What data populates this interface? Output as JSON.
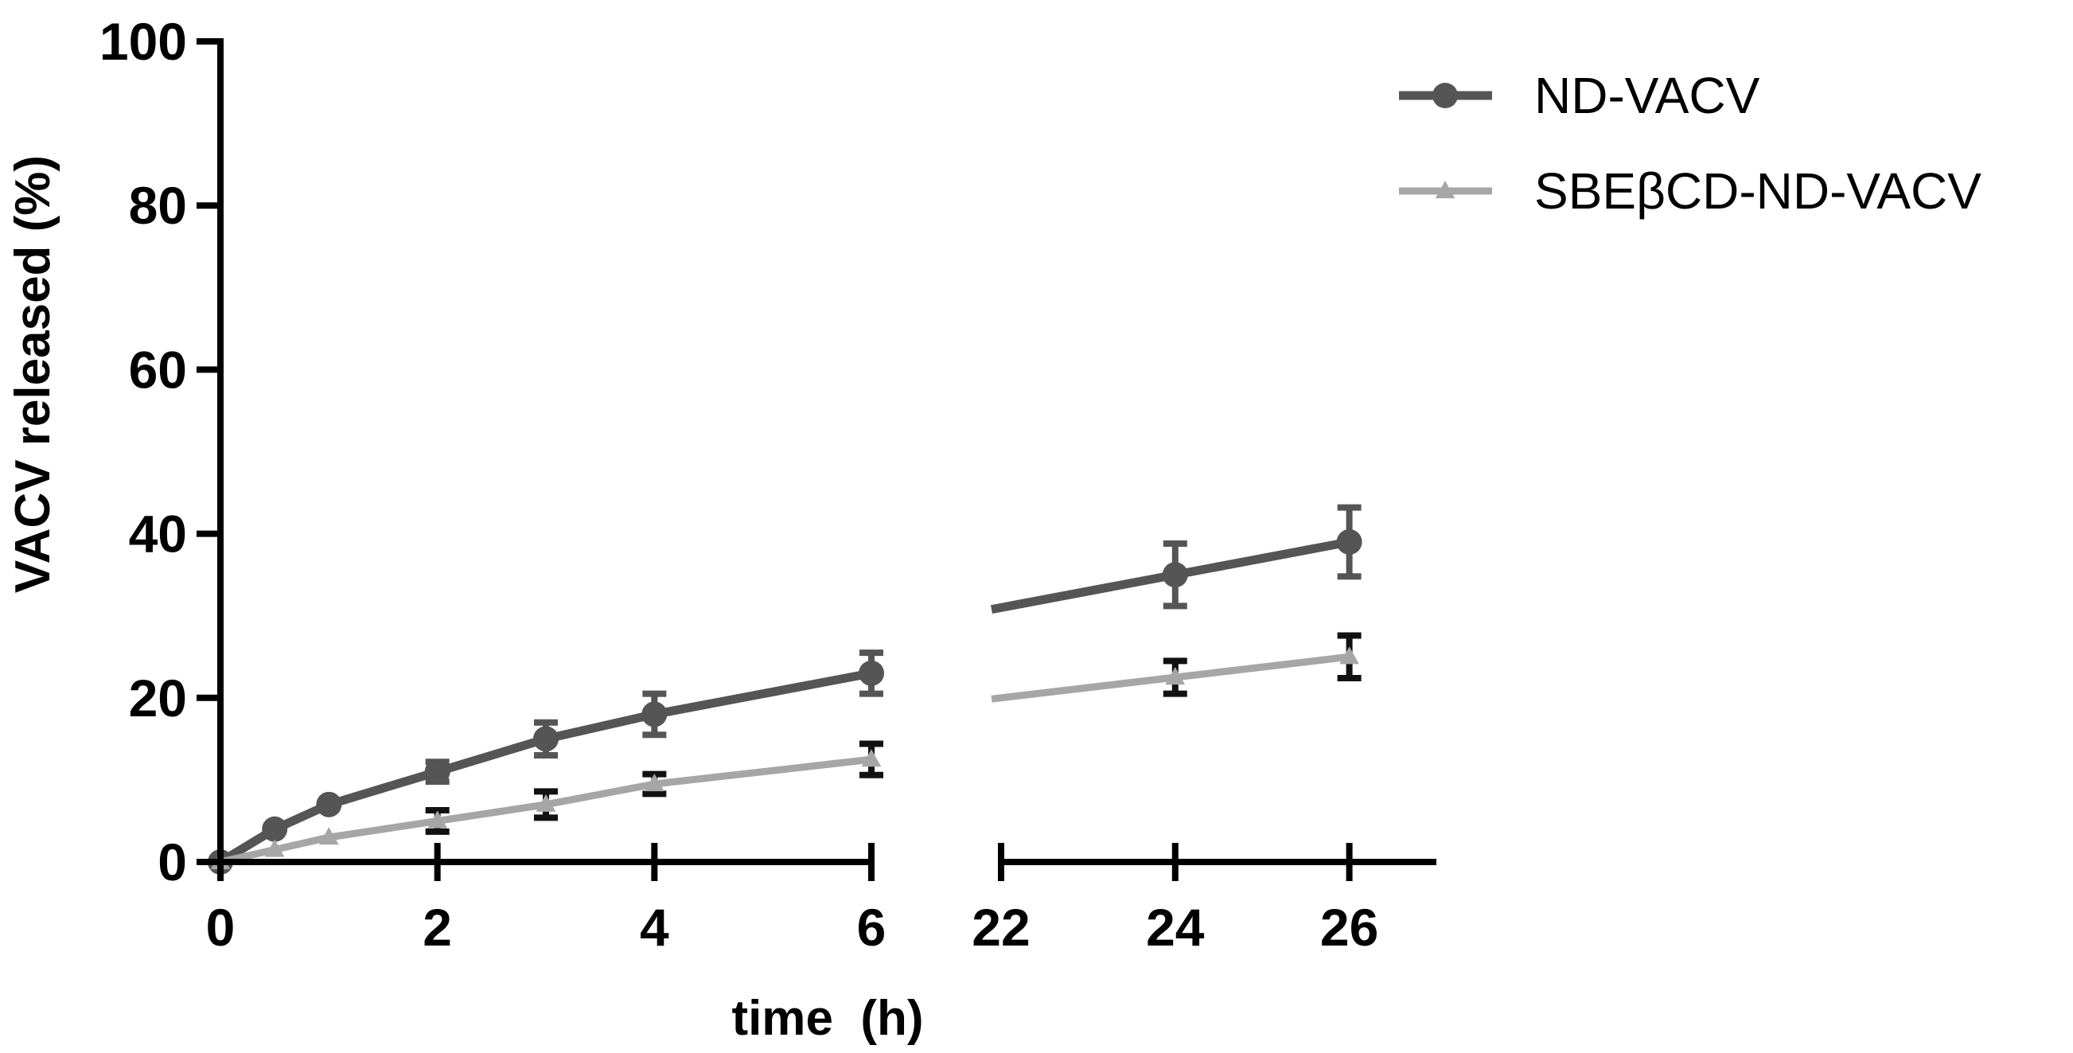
{
  "chart_data": {
    "type": "line",
    "title": "",
    "xlabel": "time  (h)",
    "ylabel": "VACV released (%)",
    "ylim": [
      0,
      100
    ],
    "y_ticks": [
      0,
      20,
      40,
      60,
      80,
      100
    ],
    "x_axis_segments": [
      {
        "range": [
          0,
          6
        ],
        "ticks": [
          0,
          2,
          4,
          6
        ]
      },
      {
        "range": [
          22,
          27
        ],
        "ticks": [
          22,
          24,
          26
        ]
      }
    ],
    "x_break": [
      6,
      22
    ],
    "legend_position": "top-right",
    "series": [
      {
        "name": "ND-VACV",
        "color": "#555555",
        "marker": "circle",
        "x": [
          0,
          0.5,
          1,
          2,
          3,
          4,
          6,
          24,
          26
        ],
        "y": [
          0,
          4,
          7,
          11,
          15,
          18,
          23,
          35,
          39
        ],
        "err": [
          0,
          0.3,
          0.4,
          1.2,
          2.0,
          2.5,
          2.5,
          3.8,
          4.2
        ]
      },
      {
        "name": "SBEβCD-ND-VACV",
        "color": "#a6a6a6",
        "marker": "triangle",
        "x": [
          0,
          0.5,
          1,
          2,
          3,
          4,
          6,
          24,
          26
        ],
        "y": [
          0,
          1.5,
          3,
          5,
          7,
          9.5,
          12.5,
          22.5,
          25
        ],
        "err": [
          0,
          0.2,
          0.3,
          1.3,
          1.6,
          1.2,
          1.9,
          2.0,
          2.6
        ]
      }
    ]
  }
}
